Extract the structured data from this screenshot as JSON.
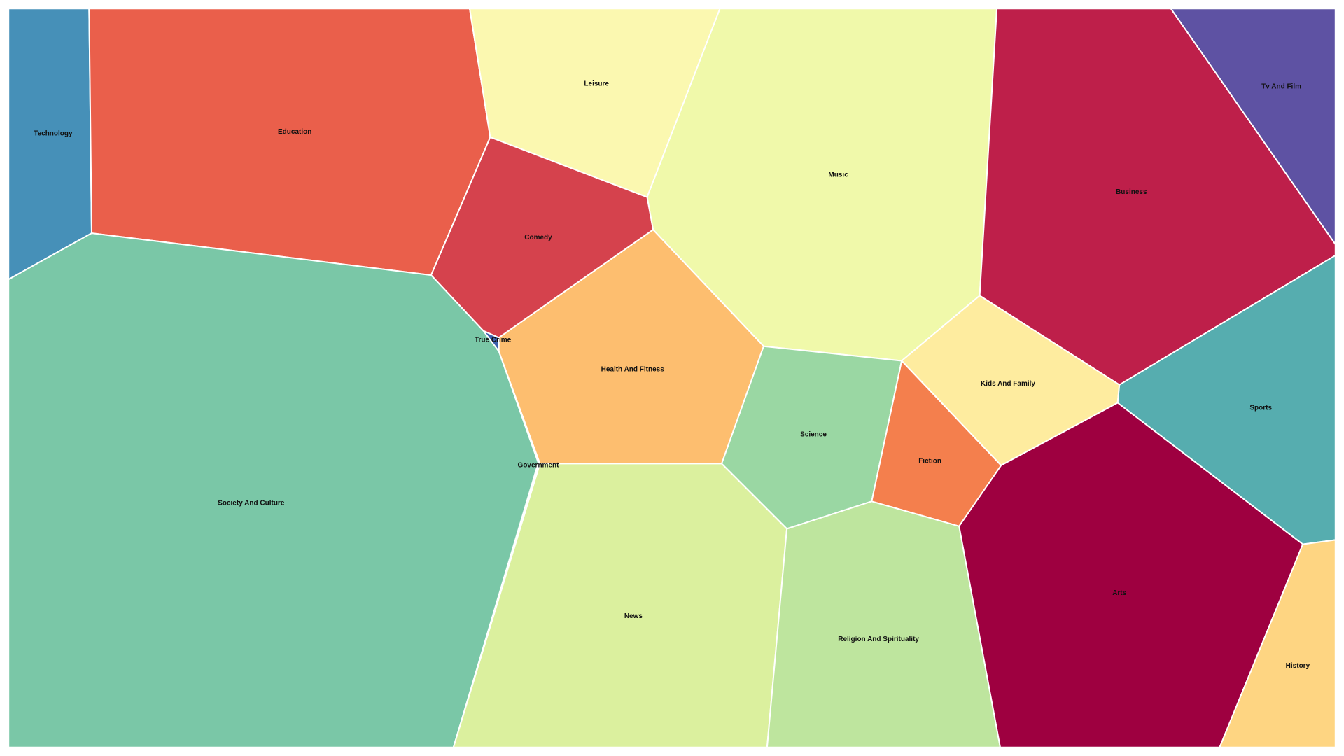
{
  "chart_data": {
    "type": "voronoi-treemap",
    "title": "",
    "cells": [
      {
        "label": "Technology",
        "color": "#4690b8"
      },
      {
        "label": "Education",
        "color": "#ea5f4b"
      },
      {
        "label": "Leisure",
        "color": "#fbf8b0"
      },
      {
        "label": "Music",
        "color": "#f0f9aa"
      },
      {
        "label": "Business",
        "color": "#be1f4a"
      },
      {
        "label": "Tv And Film",
        "color": "#5e52a3"
      },
      {
        "label": "Comedy",
        "color": "#d5424d"
      },
      {
        "label": "True Crime",
        "color": "#3b5fac"
      },
      {
        "label": "Health And Fitness",
        "color": "#fdbe6f"
      },
      {
        "label": "Society And Culture",
        "color": "#7ac7a7"
      },
      {
        "label": "Government",
        "color": "#6a7db8"
      },
      {
        "label": "Science",
        "color": "#9ad7a3"
      },
      {
        "label": "Kids And Family",
        "color": "#feec9f"
      },
      {
        "label": "Fiction",
        "color": "#f47f4d"
      },
      {
        "label": "Sports",
        "color": "#56adaf"
      },
      {
        "label": "News",
        "color": "#dbf09e"
      },
      {
        "label": "Religion And Spirituality",
        "color": "#bee59e"
      },
      {
        "label": "Arts",
        "color": "#9e0040"
      },
      {
        "label": "History",
        "color": "#fed582"
      }
    ]
  }
}
